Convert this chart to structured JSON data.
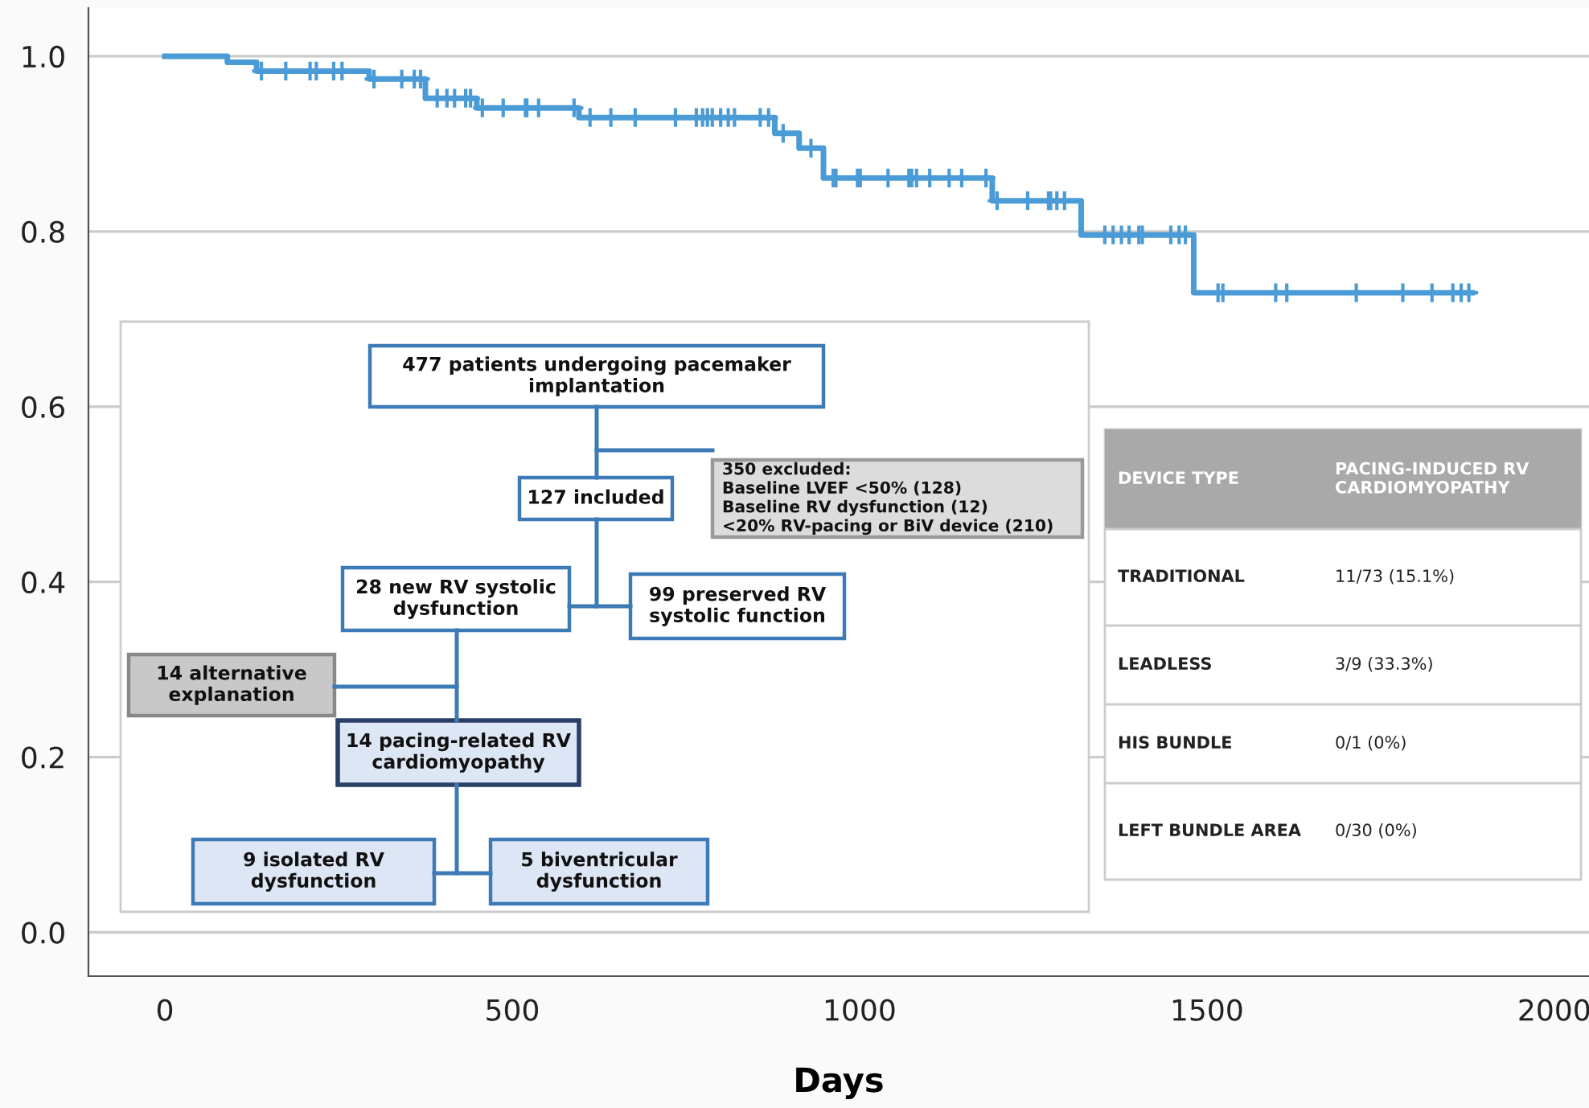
{
  "chart_data": {
    "type": "step",
    "xlabel": "Days",
    "xlim": [
      -110,
      2050
    ],
    "xticks": [
      0,
      500,
      1000,
      1500,
      2000
    ],
    "ylim": [
      -0.05,
      1.055
    ],
    "yticks": [
      {
        "value": 0,
        "label": "0.0"
      },
      {
        "value": 0.2,
        "label": "0.2"
      },
      {
        "value": 0.4,
        "label": "0.4"
      },
      {
        "value": 0.6,
        "label": "0.6"
      },
      {
        "value": 0.8,
        "label": "0.8"
      },
      {
        "value": 1,
        "label": "1.0"
      }
    ],
    "grid": "y",
    "legend": false,
    "series": [
      {
        "color": "#4a9bd6",
        "line_style": "solid",
        "marker": "none",
        "x": [
          0,
          90,
          132,
          294,
          375,
          449,
          596,
          878,
          913,
          948,
          1191,
          1319,
          1481,
          1882
        ],
        "values": [
          1.0,
          0.993,
          0.983,
          0.974,
          0.952,
          0.941,
          0.93,
          0.912,
          0.895,
          0.861,
          0.835,
          0.796,
          0.73,
          0.73
        ]
      },
      {
        "type": "scatter",
        "color": "#4a9bd6",
        "marker": "cross",
        "x": [
          139,
          174,
          209,
          218,
          243,
          255,
          301,
          341,
          359,
          368,
          392,
          406,
          417,
          433,
          440,
          457,
          487,
          519,
          521,
          538,
          589,
          612,
          642,
          677,
          735,
          765,
          774,
          781,
          788,
          800,
          811,
          820,
          857,
          869,
          890,
          930,
          962,
          966,
          997,
          1001,
          1041,
          1071,
          1075,
          1082,
          1101,
          1129,
          1147,
          1182,
          1198,
          1242,
          1272,
          1275,
          1284,
          1295,
          1353,
          1365,
          1377,
          1388,
          1402,
          1407,
          1448,
          1460,
          1469,
          1516,
          1523,
          1599,
          1615,
          1715,
          1782,
          1824,
          1854,
          1866,
          1877
        ],
        "values": [
          0.983,
          0.983,
          0.983,
          0.983,
          0.983,
          0.983,
          0.974,
          0.974,
          0.974,
          0.974,
          0.952,
          0.952,
          0.952,
          0.952,
          0.952,
          0.941,
          0.941,
          0.941,
          0.941,
          0.941,
          0.941,
          0.93,
          0.93,
          0.93,
          0.93,
          0.93,
          0.93,
          0.93,
          0.93,
          0.93,
          0.93,
          0.93,
          0.93,
          0.93,
          0.912,
          0.895,
          0.861,
          0.861,
          0.861,
          0.861,
          0.861,
          0.861,
          0.861,
          0.861,
          0.861,
          0.861,
          0.861,
          0.861,
          0.835,
          0.835,
          0.835,
          0.835,
          0.835,
          0.835,
          0.796,
          0.796,
          0.796,
          0.796,
          0.796,
          0.796,
          0.796,
          0.796,
          0.796,
          0.73,
          0.73,
          0.73,
          0.73,
          0.73,
          0.73,
          0.73,
          0.73,
          0.73,
          0.73
        ]
      }
    ],
    "annotations": [
      "477 patients undergoing pacemaker\nimplantation",
      "350 excluded:\nBaseline LVEF <50% (128)\nBaseline RV dysfunction (12)\n<20% RV-pacing or BiV device (210)",
      "127 included",
      "28 new RV systolic\ndysfunction",
      "99 preserved RV\nsystolic function",
      "14 alternative\nexplanation",
      "14 pacing-related RV\ncardiomyopathy",
      "9 isolated RV\ndysfunction",
      "5 biventricular\ndysfunction",
      "DEVICE TYPE",
      "PACING-INDUCED RV\nCARDIOMYOPATHY",
      "TRADITIONAL",
      "11/73 (15.1%)",
      "LEADLESS",
      "3/9 (33.3%)",
      "HIS BUNDLE",
      "0/1 (0%)",
      "LEFT BUNDLE AREA",
      "0/30 (0%)"
    ]
  }
}
